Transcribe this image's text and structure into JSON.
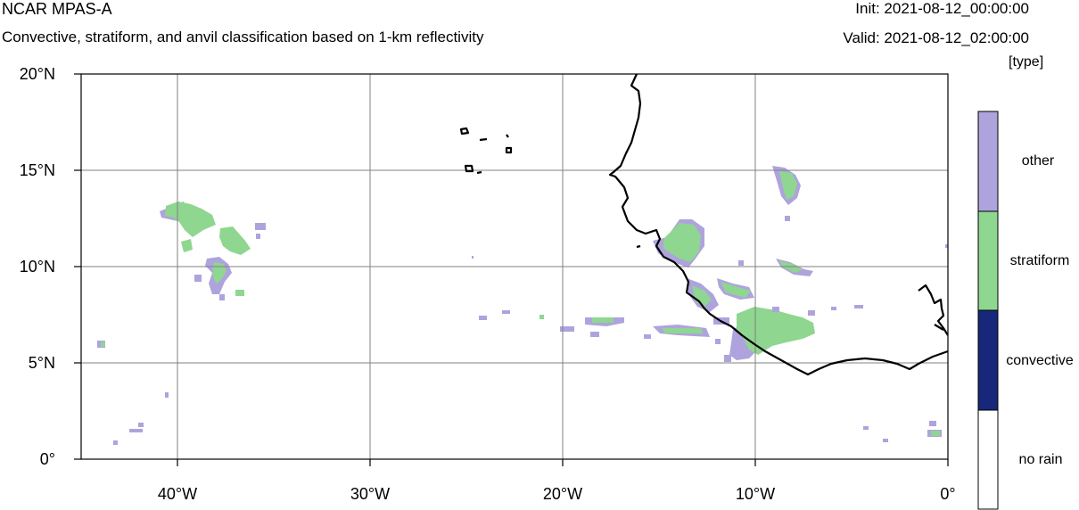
{
  "header": {
    "title": "NCAR MPAS-A",
    "subtitle": "Convective, stratiform, and anvil classification based on 1-km reflectivity",
    "init": "Init: 2021-08-12_00:00:00",
    "valid": "Valid: 2021-08-12_02:00:00",
    "units": "[type]"
  },
  "axes": {
    "lat_ticks": [
      {
        "value": 20,
        "label": "20°N"
      },
      {
        "value": 15,
        "label": "15°N"
      },
      {
        "value": 10,
        "label": "10°N"
      },
      {
        "value": 5,
        "label": "5°N"
      },
      {
        "value": 0,
        "label": "0°"
      }
    ],
    "lon_ticks": [
      {
        "value": -40,
        "label": "40°W"
      },
      {
        "value": -30,
        "label": "30°W"
      },
      {
        "value": -20,
        "label": "20°W"
      },
      {
        "value": -10,
        "label": "10°W"
      },
      {
        "value": 0,
        "label": "0°"
      }
    ],
    "lon_range": [
      -45,
      0
    ],
    "lat_range": [
      0,
      20
    ],
    "grid": true
  },
  "colorbar": {
    "categories": [
      {
        "label": "other",
        "color": "#afa3dd"
      },
      {
        "label": "stratiform",
        "color": "#8fd690"
      },
      {
        "label": "convective",
        "color": "#17277a"
      },
      {
        "label": "no rain",
        "color": "#ffffff"
      }
    ]
  },
  "colors": {
    "other": "#afa3dd",
    "stratiform": "#8fd690",
    "coast": "#000000",
    "grid": "#808080"
  }
}
